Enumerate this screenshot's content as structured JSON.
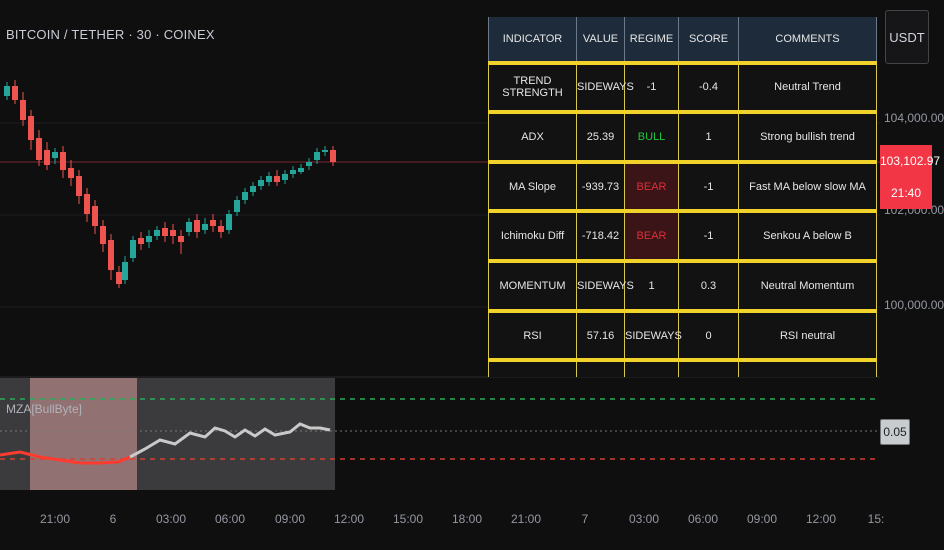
{
  "header": {
    "symbol_line": "BITCOIN / TETHER · 30 · COINEX"
  },
  "currency": "USDT",
  "price_axis": {
    "labels": [
      "104,000.00",
      "102,000.00",
      "100,000.00"
    ]
  },
  "price_tag": {
    "price": "103,102.97",
    "countdown": "21:40"
  },
  "indicator": {
    "title": "MZA[BullByte]",
    "value": "0.05"
  },
  "time_axis": [
    "21:00",
    "6",
    "03:00",
    "06:00",
    "09:00",
    "12:00",
    "15:00",
    "18:00",
    "21:00",
    "7",
    "03:00",
    "06:00",
    "09:00",
    "12:00",
    "15:"
  ],
  "table": {
    "headers": [
      "INDICATOR",
      "VALUE",
      "REGIME",
      "SCORE",
      "COMMENTS"
    ],
    "rows": [
      [
        "TREND STRENGTH",
        "SIDEWAYS",
        "-1",
        "-0.4",
        "Neutral Trend"
      ],
      [
        "ADX",
        "25.39",
        "BULL",
        "1",
        "Strong bullish trend"
      ],
      [
        "MA Slope",
        "-939.73",
        "BEAR",
        "-1",
        "Fast MA below slow MA"
      ],
      [
        "Ichimoku Diff",
        "-718.42",
        "BEAR",
        "-1",
        "Senkou A below B"
      ],
      [
        "MOMENTUM",
        "SIDEWAYS",
        "1",
        "0.3",
        "Neutral Momentum"
      ],
      [
        "RSI",
        "57.16",
        "SIDEWAYS",
        "0",
        "RSI neutral"
      ]
    ]
  },
  "colors": {
    "up": "#26a69a",
    "down": "#ef5350",
    "bull": "#1ec73a",
    "bear": "#e02f3a",
    "table_border": "#f0d22b"
  }
}
